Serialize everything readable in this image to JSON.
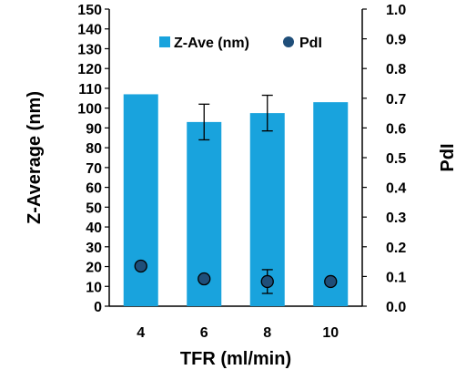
{
  "chart_data": {
    "type": "bar",
    "title": "",
    "categories": [
      "4",
      "6",
      "8",
      "10"
    ],
    "xlabel": "TFR (ml/min)",
    "ylabel": "Z-Average (nm)",
    "y2label": "PdI",
    "ylim": [
      0,
      150
    ],
    "y_ticks": [
      0,
      10,
      20,
      30,
      40,
      50,
      60,
      70,
      80,
      90,
      100,
      110,
      120,
      130,
      140,
      150
    ],
    "y2lim": [
      0,
      1.0
    ],
    "y2_ticks": [
      "0.0",
      "0.1",
      "0.2",
      "0.3",
      "0.4",
      "0.5",
      "0.6",
      "0.7",
      "0.8",
      "0.9",
      "1.0"
    ],
    "grid": false,
    "legend_position": "top-center",
    "series": [
      {
        "name": "Z-Ave (nm)",
        "kind": "bar",
        "axis": "left",
        "color": "#19A3DD",
        "values": [
          107,
          93,
          97.5,
          103
        ],
        "errors": [
          0,
          9,
          9,
          0
        ]
      },
      {
        "name": "PdI",
        "kind": "scatter",
        "axis": "right",
        "color": "#1F4E79",
        "values": [
          0.135,
          0.092,
          0.083,
          0.083
        ],
        "errors": [
          0,
          0,
          0.04,
          0
        ]
      }
    ]
  }
}
